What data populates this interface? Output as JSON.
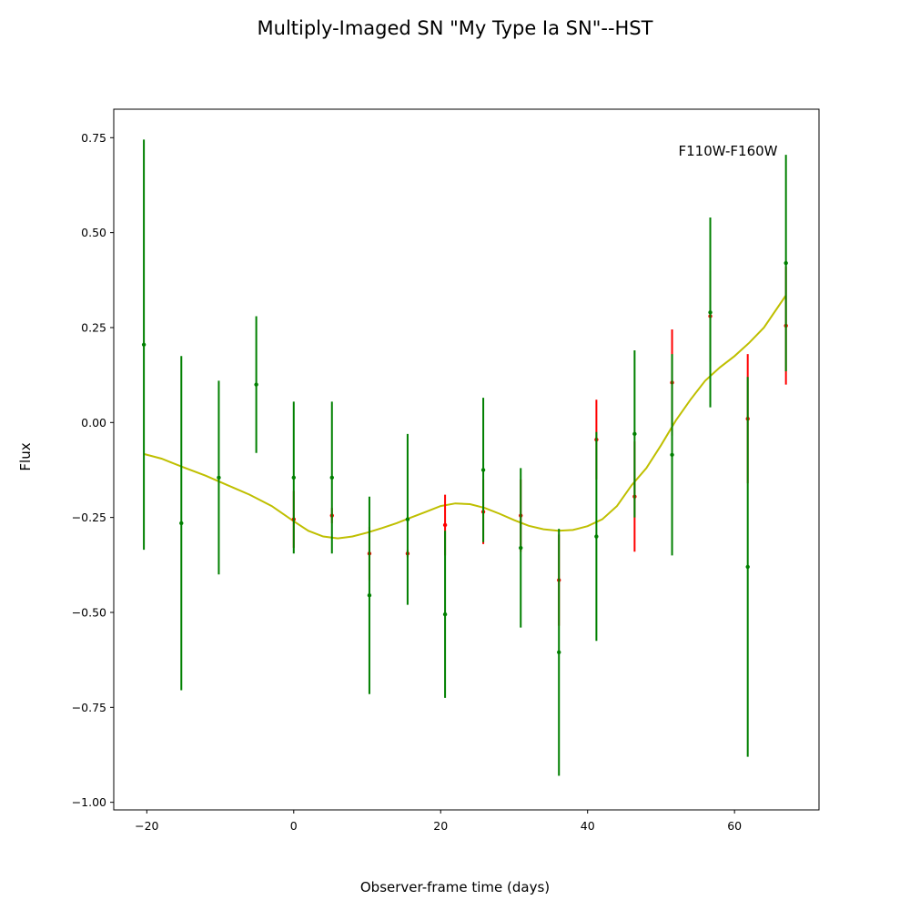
{
  "chart_data": {
    "type": "scatter",
    "title": "Multiply-Imaged SN \"My Type Ia SN\"--HST",
    "xlabel": "Observer-frame time (days)",
    "ylabel": "Flux",
    "annotation": "F110W-F160W",
    "xlim": [
      -24.5,
      71.5
    ],
    "ylim": [
      -1.02,
      0.825
    ],
    "xticks": [
      -20,
      0,
      20,
      40,
      60
    ],
    "xtick_labels": [
      "−20",
      "0",
      "20",
      "40",
      "60"
    ],
    "yticks": [
      -1.0,
      -0.75,
      -0.5,
      -0.25,
      0.0,
      0.25,
      0.5,
      0.75
    ],
    "ytick_labels": [
      "−1.00",
      "−0.75",
      "−0.50",
      "−0.25",
      "0.00",
      "0.25",
      "0.50",
      "0.75"
    ],
    "grid": false,
    "series": [
      {
        "color": "#ff0000",
        "points": [
          {
            "x": 0.0,
            "y": -0.255,
            "err": 0.075
          },
          {
            "x": 5.2,
            "y": -0.245,
            "err": 0.02
          },
          {
            "x": 10.3,
            "y": -0.345,
            "err": 0.07
          },
          {
            "x": 15.5,
            "y": -0.345,
            "err": 0.01
          },
          {
            "x": 20.6,
            "y": -0.27,
            "err": 0.08
          },
          {
            "x": 25.8,
            "y": -0.235,
            "err": 0.085
          },
          {
            "x": 30.9,
            "y": -0.245,
            "err": 0.095
          },
          {
            "x": 36.1,
            "y": -0.415,
            "err": 0.12
          },
          {
            "x": 41.2,
            "y": -0.045,
            "err": 0.105
          },
          {
            "x": 46.4,
            "y": -0.195,
            "err": 0.145
          },
          {
            "x": 51.5,
            "y": 0.105,
            "err": 0.14
          },
          {
            "x": 56.7,
            "y": 0.28,
            "err": 0.12
          },
          {
            "x": 61.8,
            "y": 0.01,
            "err": 0.17
          },
          {
            "x": 67.0,
            "y": 0.255,
            "err": 0.155
          }
        ]
      },
      {
        "color": "#008000",
        "points": [
          {
            "x": -20.4,
            "y": 0.205,
            "err": 0.54
          },
          {
            "x": -15.3,
            "y": -0.265,
            "err": 0.44
          },
          {
            "x": -10.2,
            "y": -0.145,
            "err": 0.255
          },
          {
            "x": -5.1,
            "y": 0.1,
            "err": 0.18
          },
          {
            "x": 0.0,
            "y": -0.145,
            "err": 0.2
          },
          {
            "x": 5.2,
            "y": -0.145,
            "err": 0.2
          },
          {
            "x": 10.3,
            "y": -0.455,
            "err": 0.26
          },
          {
            "x": 15.5,
            "y": -0.255,
            "err": 0.225
          },
          {
            "x": 20.6,
            "y": -0.505,
            "err": 0.22
          },
          {
            "x": 25.8,
            "y": -0.125,
            "err": 0.19
          },
          {
            "x": 30.9,
            "y": -0.33,
            "err": 0.21
          },
          {
            "x": 36.1,
            "y": -0.605,
            "err": 0.325
          },
          {
            "x": 41.2,
            "y": -0.3,
            "err": 0.275
          },
          {
            "x": 46.4,
            "y": -0.03,
            "err": 0.22
          },
          {
            "x": 51.5,
            "y": -0.085,
            "err": 0.265
          },
          {
            "x": 56.7,
            "y": 0.29,
            "err": 0.25
          },
          {
            "x": 61.8,
            "y": -0.38,
            "err": 0.5
          },
          {
            "x": 67.0,
            "y": 0.42,
            "err": 0.285
          }
        ]
      },
      {
        "color": "#bfbf00",
        "type": "line",
        "points": [
          {
            "x": -20.4,
            "y": -0.083
          },
          {
            "x": -18,
            "y": -0.095
          },
          {
            "x": -15,
            "y": -0.118
          },
          {
            "x": -12,
            "y": -0.14
          },
          {
            "x": -9,
            "y": -0.165
          },
          {
            "x": -6,
            "y": -0.19
          },
          {
            "x": -3,
            "y": -0.22
          },
          {
            "x": 0,
            "y": -0.26
          },
          {
            "x": 2,
            "y": -0.285
          },
          {
            "x": 4,
            "y": -0.3
          },
          {
            "x": 6,
            "y": -0.305
          },
          {
            "x": 8,
            "y": -0.3
          },
          {
            "x": 10,
            "y": -0.29
          },
          {
            "x": 12,
            "y": -0.278
          },
          {
            "x": 14,
            "y": -0.265
          },
          {
            "x": 16,
            "y": -0.25
          },
          {
            "x": 18,
            "y": -0.235
          },
          {
            "x": 20,
            "y": -0.22
          },
          {
            "x": 22,
            "y": -0.213
          },
          {
            "x": 24,
            "y": -0.215
          },
          {
            "x": 26,
            "y": -0.225
          },
          {
            "x": 28,
            "y": -0.24
          },
          {
            "x": 30,
            "y": -0.257
          },
          {
            "x": 32,
            "y": -0.272
          },
          {
            "x": 34,
            "y": -0.281
          },
          {
            "x": 36,
            "y": -0.285
          },
          {
            "x": 38,
            "y": -0.283
          },
          {
            "x": 40,
            "y": -0.273
          },
          {
            "x": 42,
            "y": -0.255
          },
          {
            "x": 44,
            "y": -0.22
          },
          {
            "x": 46,
            "y": -0.165
          },
          {
            "x": 48,
            "y": -0.12
          },
          {
            "x": 50,
            "y": -0.06
          },
          {
            "x": 52,
            "y": 0.005
          },
          {
            "x": 54,
            "y": 0.06
          },
          {
            "x": 56,
            "y": 0.11
          },
          {
            "x": 58,
            "y": 0.145
          },
          {
            "x": 60,
            "y": 0.175
          },
          {
            "x": 62,
            "y": 0.21
          },
          {
            "x": 64,
            "y": 0.25
          },
          {
            "x": 67.0,
            "y": 0.335
          }
        ]
      }
    ]
  }
}
